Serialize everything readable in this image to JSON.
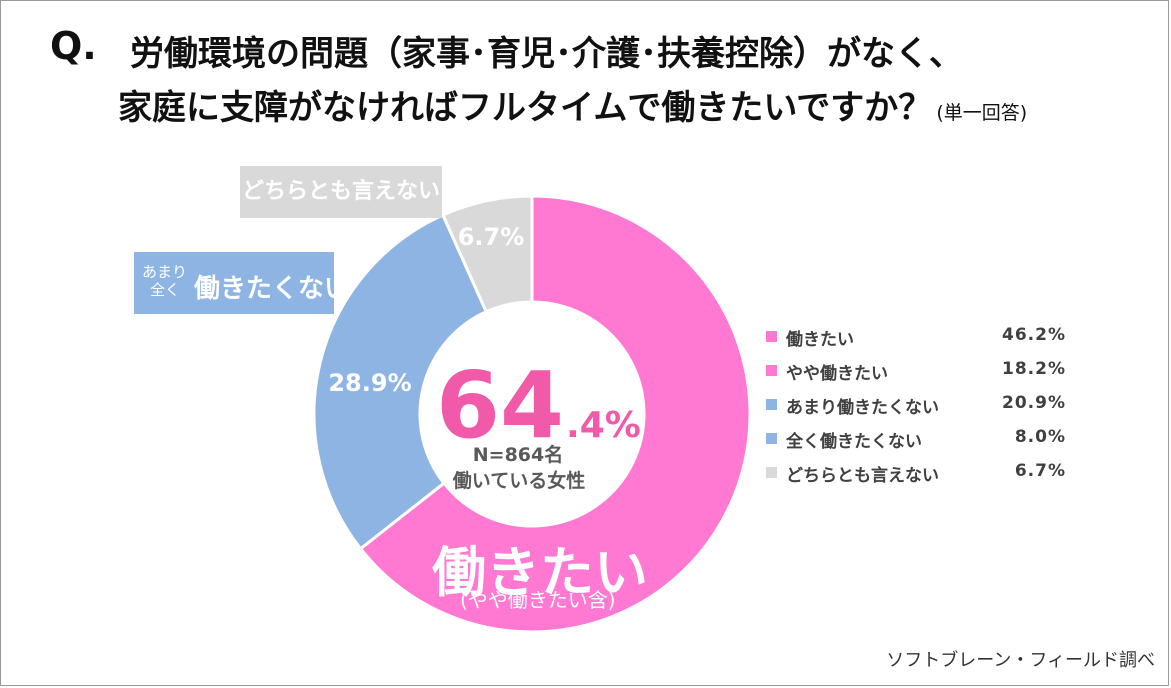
{
  "title": {
    "q_mark": "Q.",
    "line1": "労働環境の問題（家事･育児･介護･扶養控除）がなく、",
    "line2": "家庭に支障がなければフルタイムで働きたいですか？",
    "note": "(単一回答)"
  },
  "chart_data": {
    "type": "pie",
    "style": "donut",
    "slices": [
      {
        "label": "働きたい",
        "value": 46.2,
        "color": "#ff78d2"
      },
      {
        "label": "やや働きたい",
        "value": 18.2,
        "color": "#ff78d2"
      },
      {
        "label": "あまり働きたくない",
        "value": 20.9,
        "color": "#8eb4e3"
      },
      {
        "label": "全く働きたくない",
        "value": 8.0,
        "color": "#8eb4e3"
      },
      {
        "label": "どちらとも言えない",
        "value": 6.7,
        "color": "#d9d9d9"
      }
    ],
    "ring_groups": [
      {
        "label": "働きたい",
        "value": 64.4,
        "color": "#ff78d2"
      },
      {
        "label": "働きたくない",
        "value": 28.9,
        "color": "#8eb4e3"
      },
      {
        "label": "どちらとも言えない",
        "value": 6.7,
        "color": "#d9d9d9"
      }
    ],
    "ring_labels": {
      "neutral": "6.7%",
      "negative": "28.9%"
    },
    "legend": [
      {
        "label": "働きたい",
        "value": "46.2%",
        "color": "#ff78d2"
      },
      {
        "label": "やや働きたい",
        "value": "18.2%",
        "color": "#ff78d2"
      },
      {
        "label": "あまり働きたくない",
        "value": "20.9%",
        "color": "#8eb4e3"
      },
      {
        "label": "全く働きたくない",
        "value": "8.0%",
        "color": "#8eb4e3"
      },
      {
        "label": "どちらとも言えない",
        "value": "6.7%",
        "color": "#d9d9d9"
      }
    ],
    "legend_position": "right",
    "center": {
      "int": "64",
      "dec": ".4%",
      "n": "N=864名",
      "desc": "働いている女性"
    }
  },
  "callouts": {
    "neutral": "どちらとも言えない",
    "not_small_1": "あまり",
    "not_small_2": "全く",
    "not_big": "働きたくない",
    "want_big": "働きたい",
    "want_sub": "(やや働きたい含)"
  },
  "source": "ソフトブレーン・フィールド調べ"
}
